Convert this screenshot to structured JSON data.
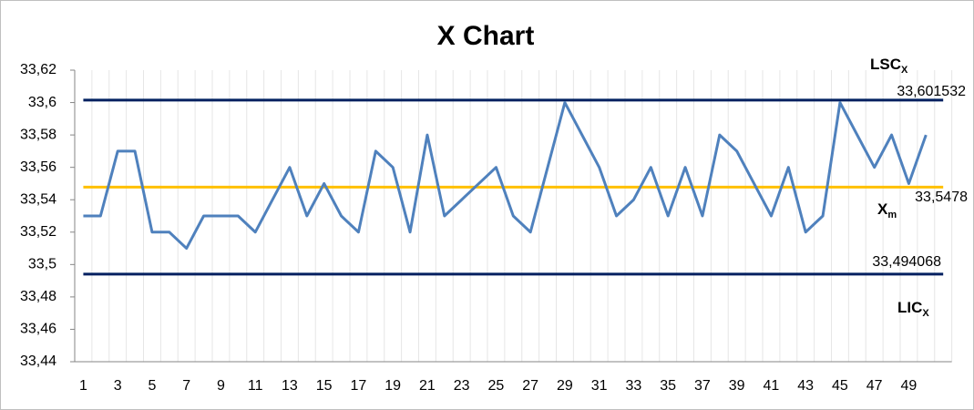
{
  "chart_data": {
    "type": "line",
    "title": "X Chart",
    "categories": [
      1,
      null,
      3,
      null,
      5,
      null,
      7,
      null,
      9,
      null,
      11,
      null,
      13,
      null,
      15,
      null,
      17,
      null,
      19,
      null,
      21,
      null,
      23,
      null,
      25,
      null,
      27,
      null,
      29,
      null,
      31,
      null,
      33,
      null,
      35,
      null,
      37,
      null,
      39,
      null,
      41,
      null,
      43,
      null,
      45,
      null,
      47,
      null,
      49,
      null
    ],
    "series": [
      {
        "color": "#4f81bd",
        "values": [
          33.53,
          33.53,
          33.57,
          33.57,
          33.52,
          33.52,
          33.51,
          33.53,
          33.53,
          33.53,
          33.52,
          33.54,
          33.56,
          33.53,
          33.55,
          33.53,
          33.52,
          33.57,
          33.56,
          33.52,
          33.58,
          33.53,
          33.54,
          33.55,
          33.56,
          33.53,
          33.52,
          33.56,
          33.6,
          33.58,
          33.56,
          33.53,
          33.54,
          33.56,
          33.53,
          33.56,
          33.53,
          33.58,
          33.57,
          33.55,
          33.53,
          33.56,
          33.52,
          33.53,
          33.6,
          33.58,
          33.56,
          33.58,
          33.55,
          33.58
        ]
      }
    ],
    "control_lines": [
      {
        "value": 33.601532,
        "label": "33,601532",
        "color": "#002060",
        "tag": "LSC",
        "sub": "X"
      },
      {
        "value": 33.5478,
        "label": "33,5478",
        "color": "#ffc000",
        "tag": "X",
        "sub": "m"
      },
      {
        "value": 33.494068,
        "label": "33,494068",
        "color": "#002060",
        "tag": "LIC",
        "sub": "X"
      }
    ],
    "ylim": [
      33.44,
      33.62
    ],
    "yticks": [
      {
        "value": 33.44,
        "label": "33,44"
      },
      {
        "value": 33.46,
        "label": "33,46"
      },
      {
        "value": 33.48,
        "label": "33,48"
      },
      {
        "value": 33.5,
        "label": "33,5"
      },
      {
        "value": 33.52,
        "label": "33,52"
      },
      {
        "value": 33.54,
        "label": "33,54"
      },
      {
        "value": 33.56,
        "label": "33,56"
      },
      {
        "value": 33.58,
        "label": "33,58"
      },
      {
        "value": 33.6,
        "label": "33,6"
      },
      {
        "value": 33.62,
        "label": "33,62"
      }
    ],
    "grid": "x"
  }
}
